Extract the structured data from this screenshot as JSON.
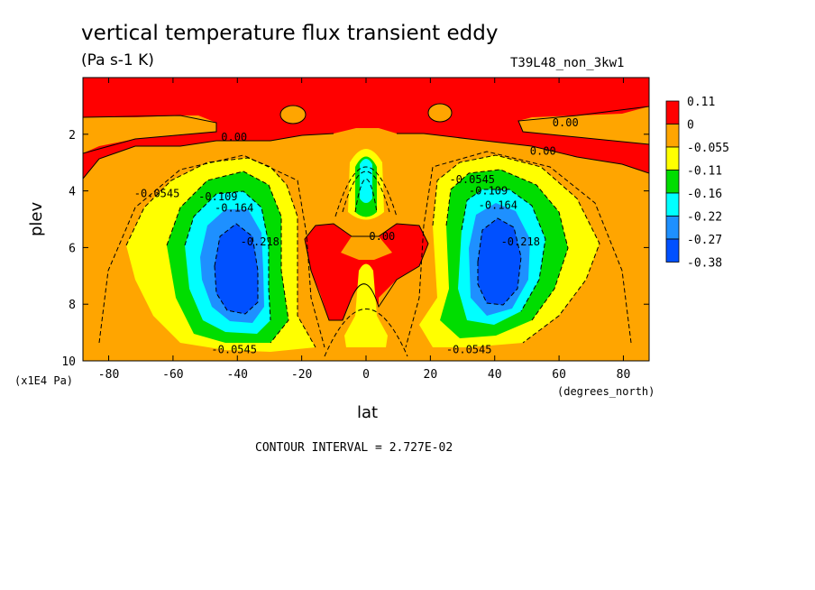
{
  "title": "vertical temperature flux transient eddy",
  "units": "(Pa s-1 K)",
  "run_id": "T39L48_non_3kw1",
  "xlabel": "lat",
  "ylabel": "plev",
  "x_units": "(degrees_north)",
  "y_units": "(x1E4 Pa)",
  "contour_interval": "CONTOUR INTERVAL = 2.727E-02",
  "chart_data": {
    "type": "heatmap",
    "title": "vertical temperature flux transient eddy",
    "xlabel": "lat",
    "ylabel": "plev",
    "xlim": [
      -88,
      88
    ],
    "ylim": [
      10,
      0
    ],
    "x_ticks": [
      -80,
      -60,
      -40,
      -20,
      0,
      20,
      40,
      60,
      80
    ],
    "y_ticks": [
      2,
      4,
      6,
      8,
      10
    ],
    "colorbar": {
      "labels": [
        "0.11",
        "0",
        "-0.055",
        "-0.11",
        "-0.16",
        "-0.22",
        "-0.27",
        "-0.38"
      ],
      "colors": [
        "#ff0000",
        "#ffa500",
        "#ffff00",
        "#00dd00",
        "#00ffff",
        "#1e90ff",
        "#0050ff"
      ]
    },
    "contour_labels": [
      {
        "text": "0.00",
        "lat": -41,
        "plev": 2.1
      },
      {
        "text": "0.00",
        "lat": 62,
        "plev": 1.6
      },
      {
        "text": "0.00",
        "lat": 55,
        "plev": 2.6
      },
      {
        "text": "0.00",
        "lat": 5,
        "plev": 5.6
      },
      {
        "text": "-0.0545",
        "lat": -65,
        "plev": 4.1
      },
      {
        "text": "-0.109",
        "lat": -46,
        "plev": 4.2
      },
      {
        "text": "-0.164",
        "lat": -41,
        "plev": 4.6
      },
      {
        "text": "-0.218",
        "lat": -33,
        "plev": 5.8
      },
      {
        "text": "-0.0545",
        "lat": -41,
        "plev": 9.6
      },
      {
        "text": "-0.0545",
        "lat": 33,
        "plev": 3.6
      },
      {
        "text": "-0.109",
        "lat": 38,
        "plev": 4.0
      },
      {
        "text": "-0.164",
        "lat": 41,
        "plev": 4.5
      },
      {
        "text": "-0.218",
        "lat": 48,
        "plev": 5.8
      },
      {
        "text": "-0.0545",
        "lat": 32,
        "plev": 9.6
      }
    ]
  }
}
